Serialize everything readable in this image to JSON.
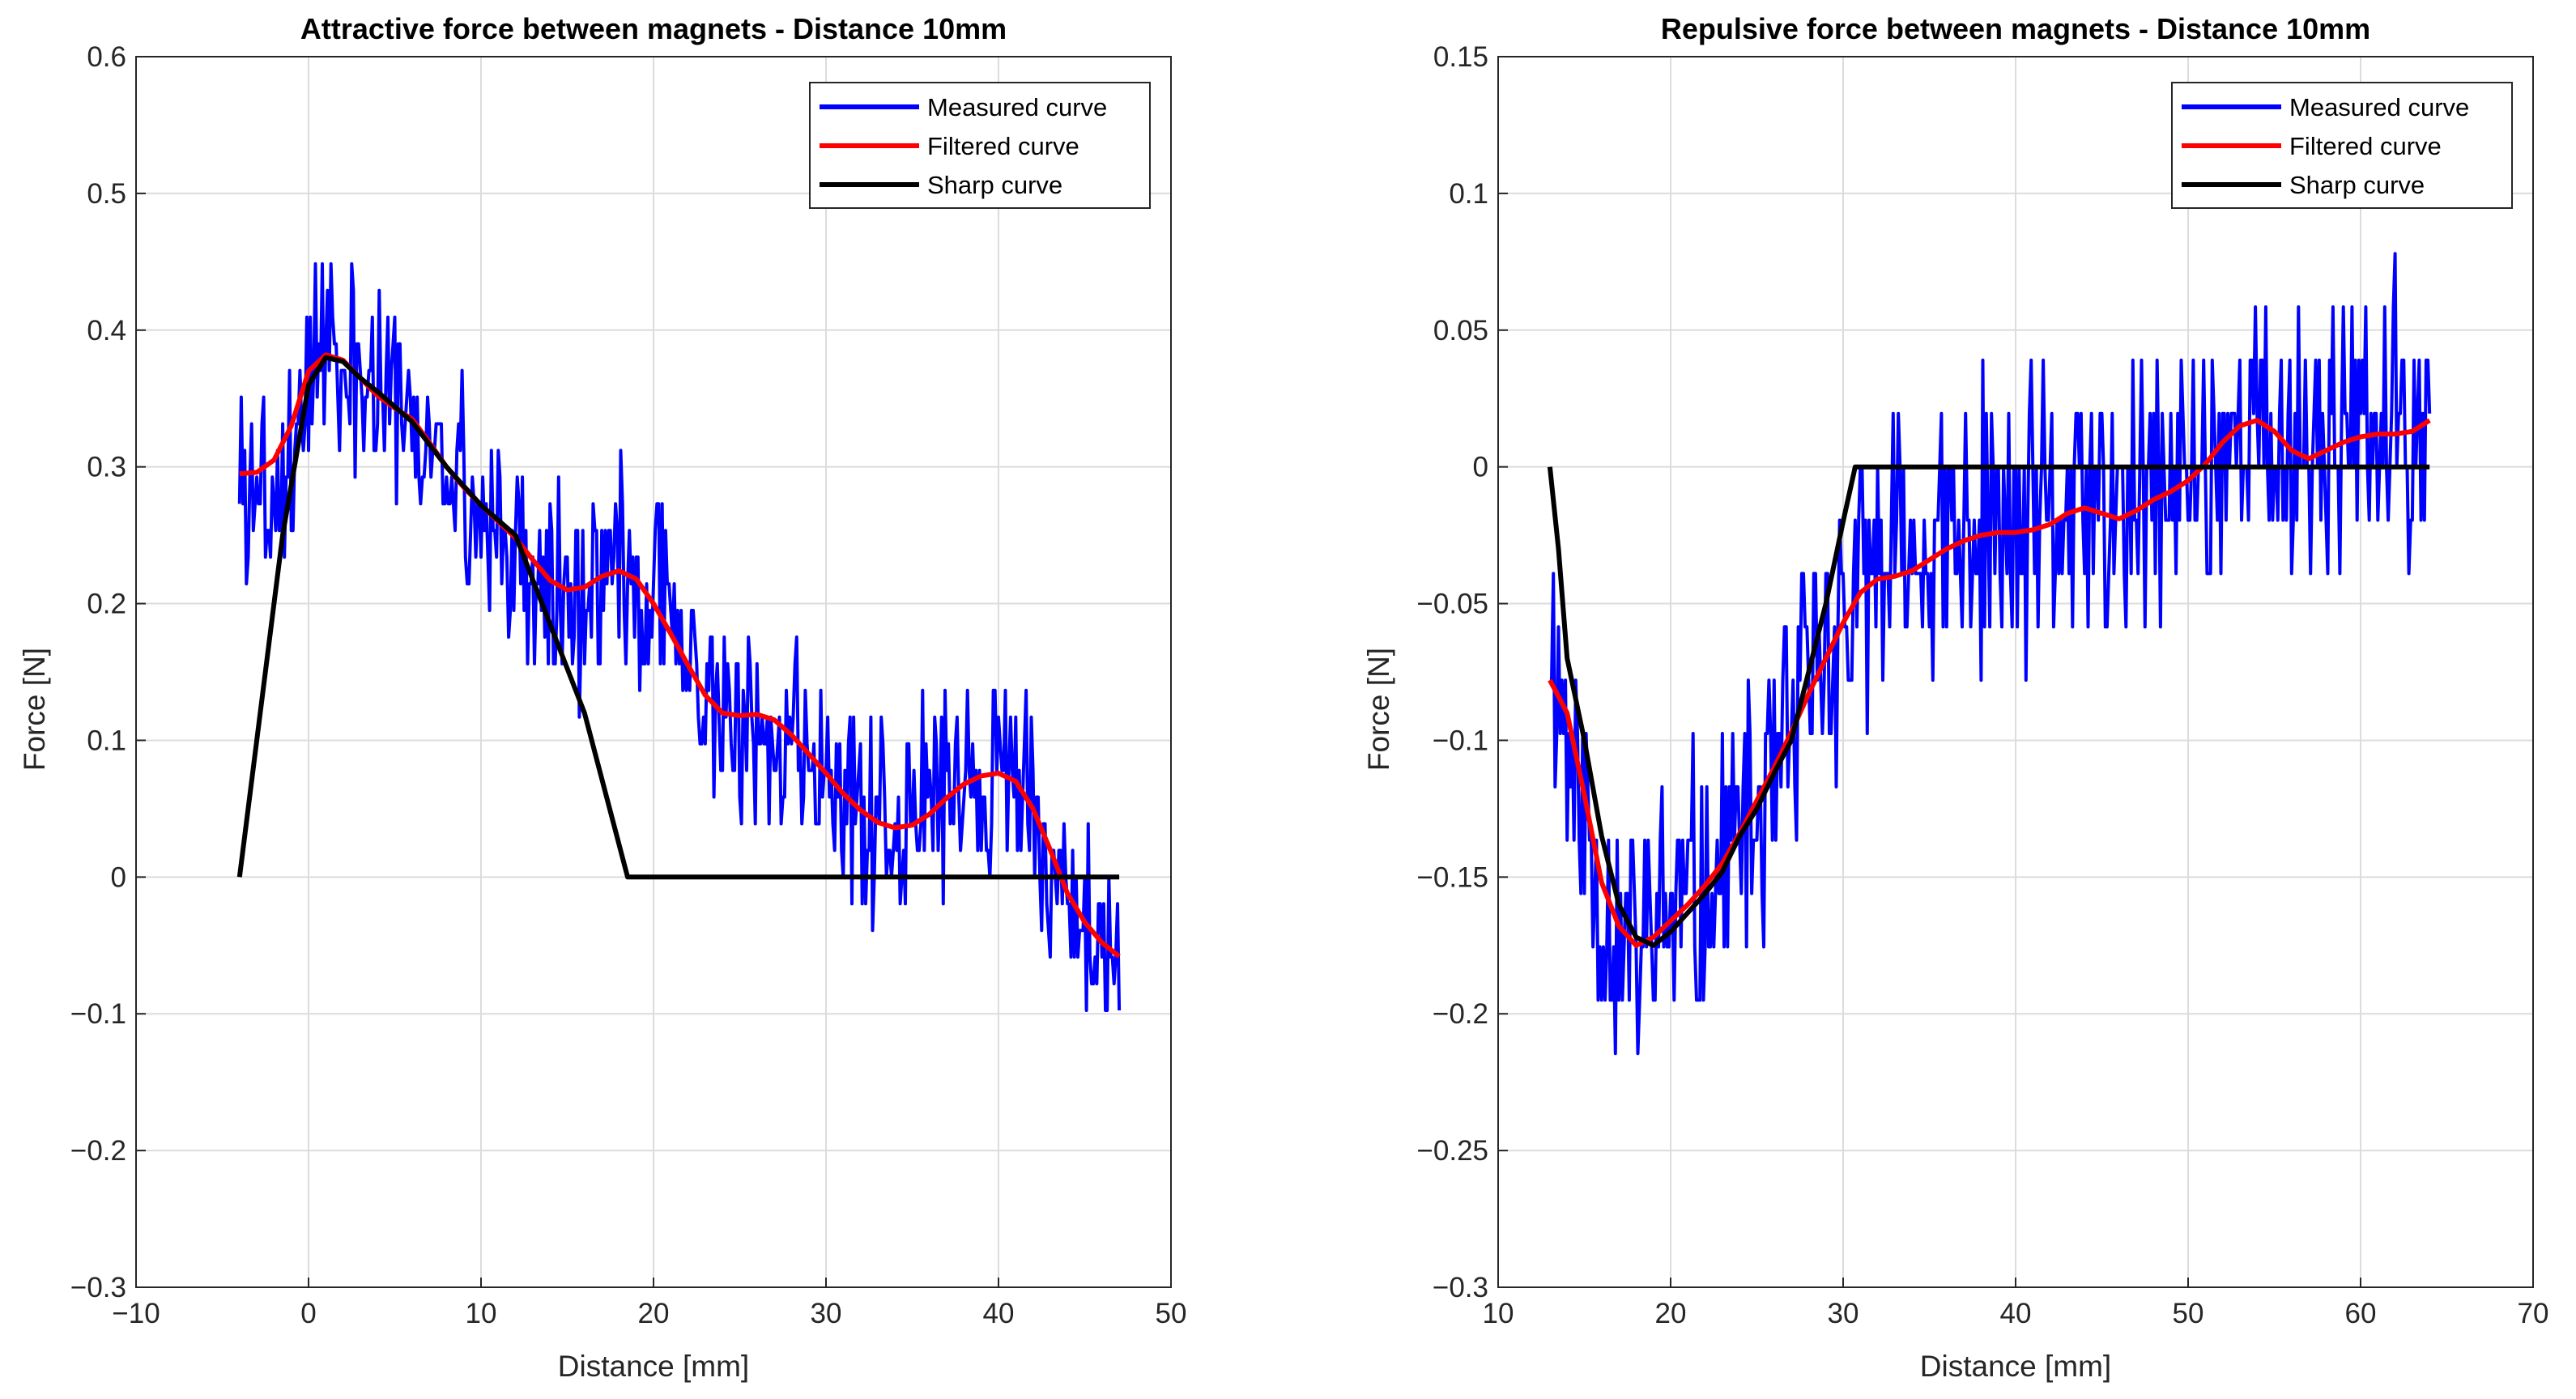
{
  "chart_data": [
    {
      "type": "line",
      "title": "Attractive force between magnets - Distance 10mm",
      "xlabel": "Distance [mm]",
      "ylabel": "Force [N]",
      "xlim": [
        -10,
        50
      ],
      "ylim": [
        -0.3,
        0.6
      ],
      "xticks": [
        -10,
        0,
        10,
        20,
        30,
        40,
        50
      ],
      "xtick_labels": [
        "−10",
        "0",
        "10",
        "20",
        "30",
        "40",
        "50"
      ],
      "yticks": [
        -0.3,
        -0.2,
        -0.1,
        0,
        0.1,
        0.2,
        0.3,
        0.4,
        0.5,
        0.6
      ],
      "ytick_labels": [
        "−0.3",
        "−0.2",
        "−0.1",
        "0",
        "0.1",
        "0.2",
        "0.3",
        "0.4",
        "0.5",
        "0.6"
      ],
      "grid": true,
      "legend_position": "top-right",
      "series": [
        {
          "name": "Measured curve",
          "color": "#0000ff",
          "noise": {
            "x_start": -4,
            "x_end": 47,
            "step": 0.1,
            "amplitude": 0.065,
            "quant": 0.0195,
            "seed": 3
          },
          "envelope_x": [
            -4,
            -3,
            -2,
            -1,
            0,
            1,
            2,
            3,
            4,
            5,
            6,
            7,
            8,
            10,
            12,
            14,
            16,
            18,
            20,
            22,
            24,
            26,
            28,
            30,
            32,
            34,
            36,
            38,
            40,
            42,
            44,
            46,
            47
          ],
          "envelope_y": [
            0.3,
            0.29,
            0.28,
            0.31,
            0.37,
            0.38,
            0.37,
            0.36,
            0.35,
            0.34,
            0.33,
            0.31,
            0.29,
            0.27,
            0.24,
            0.21,
            0.21,
            0.23,
            0.21,
            0.16,
            0.12,
            0.12,
            0.1,
            0.07,
            0.05,
            0.04,
            0.05,
            0.07,
            0.07,
            0.05,
            -0.01,
            -0.05,
            -0.06
          ]
        },
        {
          "name": "Filtered curve",
          "color": "#ff0000",
          "x": [
            -4,
            -3,
            -2,
            -1,
            0,
            1,
            2,
            3,
            4,
            5,
            6,
            7,
            8,
            9,
            10,
            11,
            12,
            13,
            14,
            15,
            16,
            17,
            18,
            19,
            20,
            21,
            22,
            23,
            24,
            25,
            26,
            27,
            28,
            29,
            30,
            31,
            32,
            33,
            34,
            35,
            36,
            37,
            38,
            39,
            40,
            41,
            42,
            43,
            44,
            45,
            46,
            47
          ],
          "y": [
            0.295,
            0.296,
            0.305,
            0.33,
            0.37,
            0.382,
            0.378,
            0.365,
            0.352,
            0.343,
            0.335,
            0.318,
            0.3,
            0.285,
            0.272,
            0.26,
            0.248,
            0.232,
            0.217,
            0.21,
            0.212,
            0.22,
            0.224,
            0.218,
            0.2,
            0.178,
            0.155,
            0.133,
            0.12,
            0.118,
            0.119,
            0.115,
            0.104,
            0.09,
            0.076,
            0.061,
            0.049,
            0.04,
            0.036,
            0.038,
            0.046,
            0.058,
            0.068,
            0.074,
            0.076,
            0.07,
            0.05,
            0.02,
            -0.012,
            -0.033,
            -0.048,
            -0.058
          ]
        },
        {
          "name": "Sharp curve",
          "color": "#000000",
          "x": [
            -4,
            -1.5,
            0,
            1,
            2,
            3,
            4,
            6,
            8,
            10,
            12,
            14,
            16,
            18.5,
            47
          ],
          "y": [
            0,
            0.25,
            0.36,
            0.38,
            0.377,
            0.365,
            0.355,
            0.333,
            0.3,
            0.272,
            0.25,
            0.185,
            0.12,
            0,
            0
          ]
        }
      ]
    },
    {
      "type": "line",
      "title": "Repulsive force between magnets - Distance 10mm",
      "xlabel": "Distance [mm]",
      "ylabel": "Force [N]",
      "xlim": [
        10,
        70
      ],
      "ylim": [
        -0.3,
        0.15
      ],
      "xticks": [
        10,
        20,
        30,
        40,
        50,
        60,
        70
      ],
      "xtick_labels": [
        "10",
        "20",
        "30",
        "40",
        "50",
        "60",
        "70"
      ],
      "yticks": [
        -0.3,
        -0.25,
        -0.2,
        -0.15,
        -0.1,
        -0.05,
        0,
        0.05,
        0.1,
        0.15
      ],
      "ytick_labels": [
        "−0.3",
        "−0.25",
        "−0.2",
        "−0.15",
        "−0.1",
        "−0.05",
        "0",
        "0.05",
        "0.1",
        "0.15"
      ],
      "grid": true,
      "legend_position": "top-right",
      "series": [
        {
          "name": "Measured curve",
          "color": "#0000ff",
          "noise": {
            "x_start": 13,
            "x_end": 64,
            "step": 0.1,
            "amplitude": 0.045,
            "quant": 0.0195,
            "seed": 11
          },
          "envelope_x": [
            13,
            14,
            15,
            16,
            17,
            18,
            19,
            20,
            22,
            24,
            26,
            27,
            28,
            30,
            32,
            34,
            36,
            38,
            40,
            42,
            44,
            46,
            48,
            50,
            52,
            54,
            56,
            58,
            60,
            62,
            64
          ],
          "envelope_y": [
            -0.06,
            -0.1,
            -0.13,
            -0.16,
            -0.17,
            -0.175,
            -0.17,
            -0.165,
            -0.155,
            -0.135,
            -0.12,
            -0.1,
            -0.08,
            -0.055,
            -0.04,
            -0.035,
            -0.03,
            -0.025,
            -0.024,
            -0.02,
            -0.017,
            -0.02,
            -0.012,
            -0.005,
            0.008,
            0.014,
            0.005,
            0.01,
            0.012,
            0.013,
            0.015
          ]
        },
        {
          "name": "Filtered curve",
          "color": "#ff0000",
          "x": [
            13,
            14,
            15,
            16,
            17,
            18,
            19,
            20,
            21,
            22,
            23,
            24,
            25,
            26,
            27,
            28,
            29,
            30,
            31,
            32,
            33,
            34,
            35,
            36,
            37,
            38,
            39,
            40,
            41,
            42,
            43,
            44,
            45,
            46,
            47,
            48,
            49,
            50,
            51,
            52,
            53,
            54,
            55,
            56,
            57,
            58,
            59,
            60,
            61,
            62,
            63,
            64
          ],
          "y": [
            -0.078,
            -0.09,
            -0.12,
            -0.152,
            -0.168,
            -0.175,
            -0.172,
            -0.166,
            -0.16,
            -0.153,
            -0.145,
            -0.134,
            -0.122,
            -0.11,
            -0.097,
            -0.083,
            -0.07,
            -0.057,
            -0.046,
            -0.041,
            -0.04,
            -0.038,
            -0.034,
            -0.03,
            -0.027,
            -0.025,
            -0.024,
            -0.024,
            -0.023,
            -0.021,
            -0.017,
            -0.015,
            -0.017,
            -0.019,
            -0.016,
            -0.012,
            -0.009,
            -0.005,
            0.001,
            0.009,
            0.015,
            0.017,
            0.013,
            0.006,
            0.003,
            0.006,
            0.009,
            0.011,
            0.012,
            0.012,
            0.013,
            0.017
          ]
        },
        {
          "name": "Sharp curve",
          "color": "#000000",
          "x": [
            13,
            13.5,
            14,
            15,
            16,
            17,
            18,
            19,
            20,
            21,
            22,
            23,
            24,
            25,
            26,
            27,
            28,
            29,
            30,
            30.7,
            64
          ],
          "y": [
            0,
            -0.03,
            -0.07,
            -0.1,
            -0.135,
            -0.16,
            -0.172,
            -0.175,
            -0.17,
            -0.163,
            -0.156,
            -0.148,
            -0.135,
            -0.125,
            -0.112,
            -0.1,
            -0.075,
            -0.05,
            -0.02,
            0,
            0
          ]
        }
      ]
    }
  ]
}
